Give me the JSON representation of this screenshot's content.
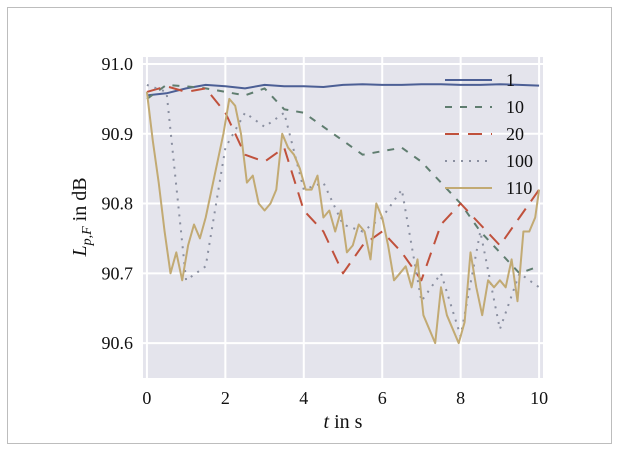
{
  "chart_data": {
    "type": "line",
    "xlabel": {
      "italic": "t",
      "rest": " in s"
    },
    "ylabel": {
      "main": "L",
      "sub": "p,F",
      "rest": " in dB"
    },
    "xlim": [
      -0.1,
      10.1
    ],
    "ylim": [
      90.55,
      91.01
    ],
    "x_ticks": [
      "0",
      "2",
      "4",
      "6",
      "8",
      "10"
    ],
    "y_ticks": [
      "91.0",
      "90.9",
      "90.8",
      "90.7",
      "90.6"
    ],
    "grid": true,
    "legend_position": "top-right",
    "series": [
      {
        "name": "1",
        "color": "#4c5f95",
        "dash": "",
        "x": [
          0,
          0.5,
          1,
          1.5,
          2,
          2.5,
          3,
          3.5,
          4,
          4.5,
          5,
          5.5,
          6,
          6.5,
          7,
          7.5,
          8,
          8.5,
          9,
          9.5,
          10
        ],
        "y": [
          90.955,
          90.958,
          90.965,
          90.97,
          90.968,
          90.965,
          90.97,
          90.968,
          90.968,
          90.967,
          90.97,
          90.971,
          90.97,
          90.97,
          90.971,
          90.971,
          90.97,
          90.97,
          90.971,
          90.97,
          90.969
        ]
      },
      {
        "name": "10",
        "color": "#5f7d6f",
        "dash": "7,8",
        "x": [
          0,
          0.5,
          1,
          1.5,
          2,
          2.5,
          3,
          3.5,
          4,
          4.5,
          5,
          5.5,
          6,
          6.5,
          7,
          7.5,
          8,
          8.5,
          9,
          9.5,
          10
        ],
        "y": [
          90.95,
          90.97,
          90.968,
          90.965,
          90.96,
          90.955,
          90.965,
          90.935,
          90.93,
          90.91,
          90.89,
          90.87,
          90.875,
          90.88,
          90.86,
          90.83,
          90.8,
          90.76,
          90.73,
          90.7,
          90.71
        ]
      },
      {
        "name": "20",
        "color": "#c0513c",
        "dash": "14,9",
        "x": [
          0,
          0.5,
          1,
          1.5,
          2,
          2.5,
          3,
          3.5,
          4,
          4.5,
          5,
          5.5,
          6,
          6.5,
          7,
          7.5,
          8,
          8.5,
          9,
          9.5,
          10
        ],
        "y": [
          90.96,
          90.968,
          90.96,
          90.965,
          90.93,
          90.87,
          90.86,
          90.88,
          90.79,
          90.76,
          90.7,
          90.74,
          90.76,
          90.73,
          90.69,
          90.77,
          90.8,
          90.77,
          90.74,
          90.78,
          90.82
        ]
      },
      {
        "name": "100",
        "color": "#8a8fa0",
        "dash": "2,6",
        "x": [
          0,
          0.5,
          1,
          1.5,
          2,
          2.5,
          3,
          3.5,
          4,
          4.5,
          5,
          5.5,
          6,
          6.5,
          7,
          7.5,
          8,
          8.5,
          9,
          9.5,
          10
        ],
        "y": [
          90.97,
          90.96,
          90.69,
          90.71,
          90.88,
          90.93,
          90.91,
          90.93,
          90.82,
          90.83,
          90.77,
          90.76,
          90.78,
          90.82,
          90.66,
          90.7,
          90.61,
          90.76,
          90.62,
          90.7,
          90.68
        ]
      },
      {
        "name": "110",
        "color": "#c2aa73",
        "dash": "",
        "x": [
          0,
          0.15,
          0.3,
          0.45,
          0.6,
          0.75,
          0.9,
          1.05,
          1.2,
          1.35,
          1.5,
          1.65,
          1.8,
          1.95,
          2.1,
          2.25,
          2.4,
          2.55,
          2.7,
          2.85,
          3.0,
          3.15,
          3.3,
          3.45,
          3.6,
          3.75,
          3.9,
          4.05,
          4.2,
          4.35,
          4.5,
          4.65,
          4.8,
          4.95,
          5.1,
          5.25,
          5.4,
          5.55,
          5.7,
          5.85,
          6.0,
          6.15,
          6.3,
          6.45,
          6.6,
          6.75,
          6.9,
          7.05,
          7.2,
          7.35,
          7.5,
          7.65,
          7.8,
          7.95,
          8.1,
          8.25,
          8.4,
          8.55,
          8.7,
          8.85,
          9.0,
          9.15,
          9.3,
          9.45,
          9.6,
          9.75,
          9.9,
          10.0
        ],
        "y": [
          90.96,
          90.89,
          90.83,
          90.76,
          90.7,
          90.73,
          90.69,
          90.74,
          90.77,
          90.75,
          90.78,
          90.82,
          90.86,
          90.9,
          90.95,
          90.94,
          90.9,
          90.83,
          90.84,
          90.8,
          90.79,
          90.8,
          90.82,
          90.9,
          90.88,
          90.87,
          90.85,
          90.82,
          90.82,
          90.84,
          90.78,
          90.79,
          90.76,
          90.79,
          90.73,
          90.74,
          90.77,
          90.76,
          90.72,
          90.8,
          90.78,
          90.74,
          90.69,
          90.7,
          90.71,
          90.68,
          90.72,
          90.64,
          90.62,
          90.6,
          90.68,
          90.64,
          90.62,
          90.6,
          90.63,
          90.73,
          90.68,
          90.64,
          90.69,
          90.68,
          90.69,
          90.68,
          90.72,
          90.66,
          90.76,
          90.76,
          90.78,
          90.82
        ]
      }
    ]
  }
}
